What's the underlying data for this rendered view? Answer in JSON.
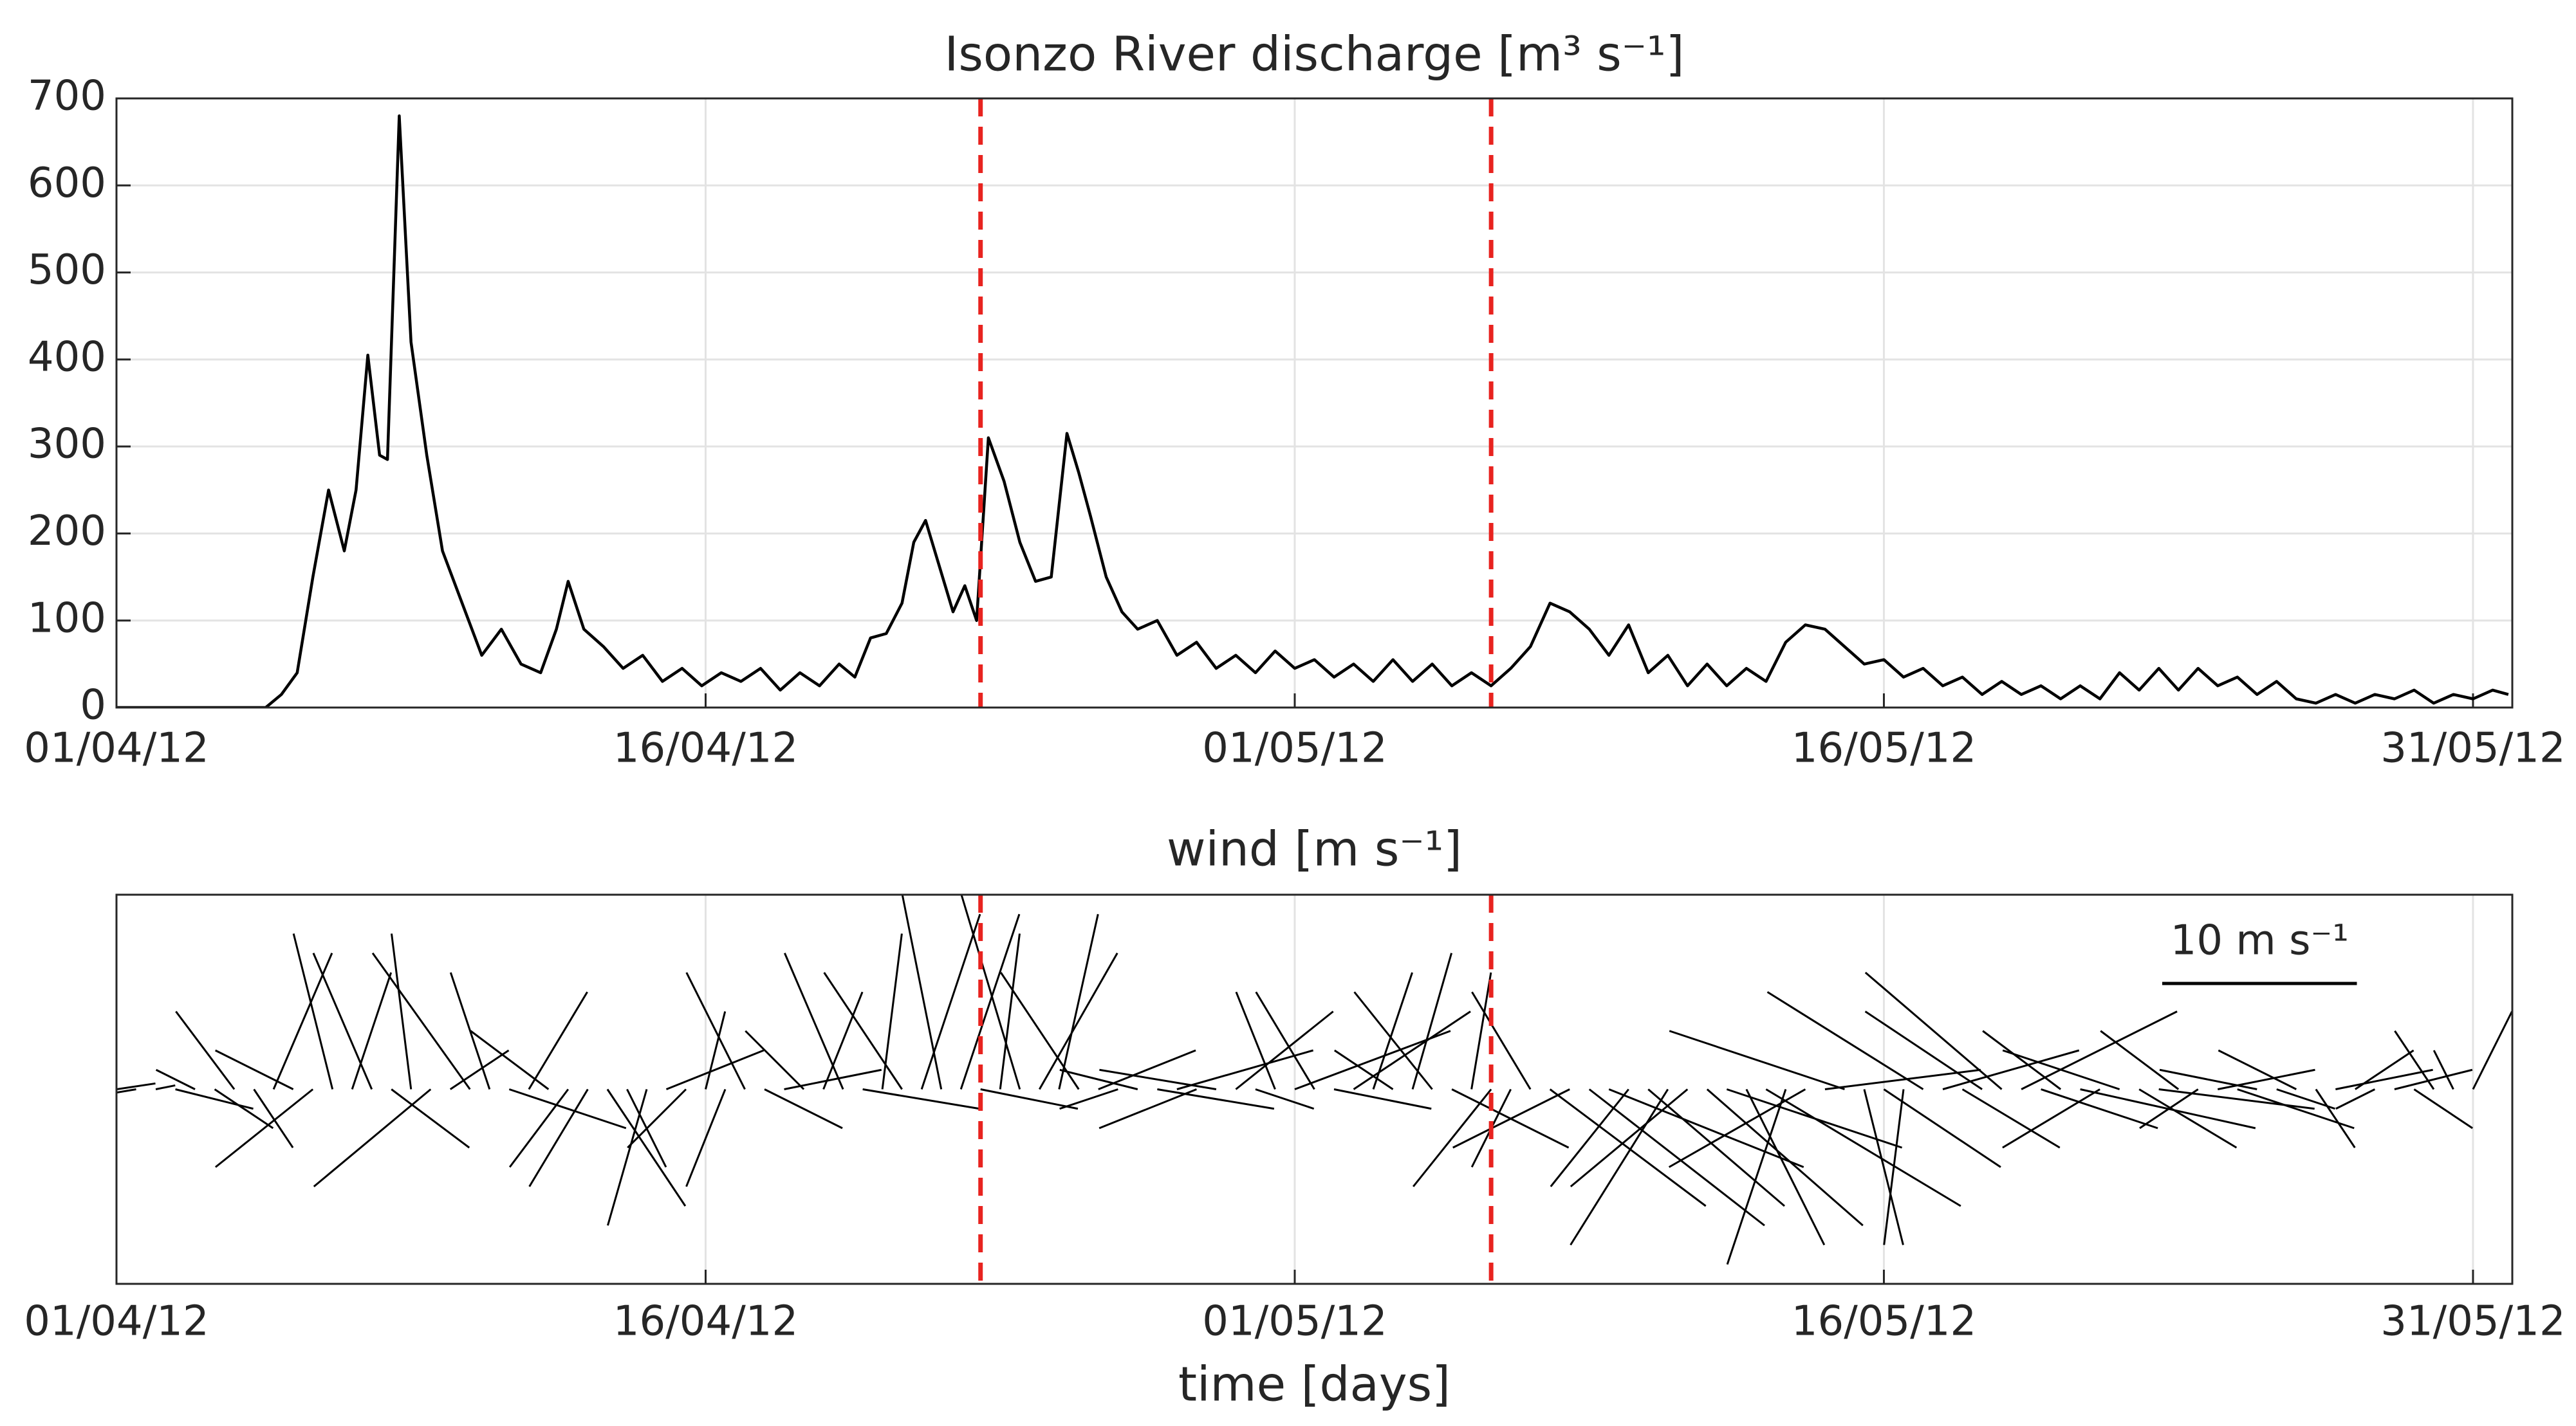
{
  "chart_data": [
    {
      "type": "line",
      "title": "Isonzo River discharge [m³ s⁻¹]",
      "x": [
        0,
        3.8,
        4.2,
        4.6,
        5.0,
        5.4,
        5.8,
        6.1,
        6.4,
        6.7,
        6.9,
        7.2,
        7.5,
        7.9,
        8.3,
        8.8,
        9.3,
        9.8,
        10.3,
        10.8,
        11.2,
        11.5,
        11.9,
        12.4,
        12.9,
        13.4,
        13.9,
        14.4,
        14.9,
        15.4,
        15.9,
        16.4,
        16.9,
        17.4,
        17.9,
        18.4,
        18.8,
        19.2,
        19.6,
        20.0,
        20.3,
        20.6,
        20.9,
        21.3,
        21.6,
        21.9,
        22.2,
        22.6,
        23.0,
        23.4,
        23.8,
        24.2,
        24.5,
        24.8,
        25.2,
        25.6,
        26.0,
        26.5,
        27.0,
        27.5,
        28.0,
        28.5,
        29.0,
        29.5,
        30.0,
        30.5,
        31.0,
        31.5,
        32.0,
        32.5,
        33.0,
        33.5,
        34.0,
        34.5,
        35.0,
        35.5,
        36.0,
        36.5,
        37.0,
        37.5,
        38.0,
        38.5,
        39.0,
        39.5,
        40.0,
        40.5,
        41.0,
        41.5,
        42.0,
        42.5,
        43.0,
        43.5,
        44.0,
        44.5,
        45.0,
        45.5,
        46.0,
        46.5,
        47.0,
        47.5,
        48.0,
        48.5,
        49.0,
        49.5,
        50.0,
        50.5,
        51.0,
        51.5,
        52.0,
        52.5,
        53.0,
        53.5,
        54.0,
        54.5,
        55.0,
        55.5,
        56.0,
        56.5,
        57.0,
        57.5,
        58.0,
        58.5,
        59.0,
        59.5,
        60.0,
        60.5,
        60.9
      ],
      "values": [
        0,
        0,
        15,
        40,
        150,
        250,
        180,
        250,
        405,
        290,
        285,
        680,
        420,
        290,
        180,
        120,
        60,
        90,
        50,
        40,
        90,
        145,
        90,
        70,
        45,
        60,
        30,
        45,
        25,
        40,
        30,
        45,
        20,
        40,
        25,
        50,
        35,
        80,
        85,
        120,
        190,
        215,
        170,
        110,
        140,
        100,
        310,
        260,
        190,
        145,
        150,
        315,
        270,
        220,
        150,
        110,
        90,
        100,
        60,
        75,
        45,
        60,
        40,
        65,
        45,
        55,
        35,
        50,
        30,
        55,
        30,
        50,
        25,
        40,
        25,
        45,
        70,
        120,
        110,
        90,
        60,
        95,
        40,
        60,
        25,
        50,
        25,
        45,
        30,
        75,
        95,
        90,
        70,
        50,
        55,
        35,
        45,
        25,
        35,
        15,
        30,
        15,
        25,
        10,
        25,
        10,
        40,
        20,
        45,
        20,
        45,
        25,
        35,
        15,
        30,
        10,
        5,
        15,
        5,
        15,
        10,
        20,
        5,
        15,
        10,
        20,
        15
      ],
      "color": "#000000",
      "xlim": [
        0,
        61
      ],
      "xticks": [
        {
          "value": 0,
          "label": "01/04/12"
        },
        {
          "value": 15,
          "label": "16/04/12"
        },
        {
          "value": 30,
          "label": "01/05/12"
        },
        {
          "value": 45,
          "label": "16/05/12"
        },
        {
          "value": 60,
          "label": "31/05/12"
        }
      ],
      "ylim": [
        0,
        700
      ],
      "yticks": [
        0,
        100,
        200,
        300,
        400,
        500,
        600,
        700
      ],
      "grid": true,
      "vlines": [
        22,
        35
      ],
      "vline_color": "#e8231f"
    },
    {
      "type": "stick",
      "title": "wind [m s⁻¹]",
      "xlabel": "time [days]",
      "x": [
        0,
        0.5,
        1,
        1.5,
        2,
        2.5,
        3,
        3.5,
        4,
        4.5,
        5,
        5.5,
        6,
        6.5,
        7,
        7.5,
        8,
        8.5,
        9,
        9.5,
        10,
        10.5,
        11,
        11.5,
        12,
        12.5,
        13,
        13.5,
        14,
        14.5,
        15,
        15.5,
        16,
        16.5,
        17,
        17.5,
        18,
        18.5,
        19,
        19.5,
        20,
        20.5,
        21,
        21.5,
        22,
        22.5,
        23,
        23.5,
        24,
        24.5,
        25,
        25.5,
        26,
        26.5,
        27,
        27.5,
        28,
        28.5,
        29,
        29.5,
        30,
        30.5,
        31,
        31.5,
        32,
        32.5,
        33,
        33.5,
        34,
        34.5,
        35,
        35.5,
        36,
        36.5,
        37,
        37.5,
        38,
        38.5,
        39,
        39.5,
        40,
        40.5,
        41,
        41.5,
        42,
        42.5,
        43,
        43.5,
        44,
        44.5,
        45,
        45.5,
        46,
        46.5,
        47,
        47.5,
        48,
        48.5,
        49,
        49.5,
        50,
        50.5,
        51,
        51.5,
        52,
        52.5,
        53,
        53.5,
        54,
        54.5,
        55,
        55.5,
        56,
        56.5,
        57,
        57.5,
        58,
        58.5,
        59,
        59.5,
        60
      ],
      "u": [
        2,
        -3,
        1,
        4,
        -2,
        3,
        -3,
        2,
        3,
        -4,
        -5,
        -2,
        2,
        -3,
        4,
        -1,
        -6,
        3,
        -5,
        -2,
        6,
        3,
        -4,
        -3,
        -3,
        4,
        2,
        -2,
        5,
        -3,
        1,
        -2,
        -3,
        4,
        5,
        -3,
        2,
        -3,
        6,
        1,
        -4,
        3,
        -2,
        3,
        5,
        1,
        -3,
        4,
        2,
        -4,
        5,
        -3,
        -4,
        6,
        7,
        -5,
        -6,
        5,
        3,
        -2,
        8,
        -3,
        5,
        6,
        2,
        -3,
        2,
        -4,
        6,
        1,
        -4,
        -2,
        -3,
        8,
        -6,
        9,
        10,
        -4,
        7,
        -5,
        -6,
        8,
        9,
        4,
        10,
        -3,
        -7,
        8,
        -9,
        2,
        6,
        -1,
        -8,
        7,
        5,
        -6,
        -7,
        8,
        6,
        -4,
        9,
        -5,
        -6,
        5,
        8,
        -4,
        -3,
        5,
        6,
        -5,
        3,
        -4,
        2,
        5,
        3,
        -2,
        4,
        3,
        -2,
        -1,
        2
      ],
      "v": [
        0.3,
        -0.5,
        0.2,
        -1,
        1,
        -2,
        4,
        -3,
        7,
        2,
        -4,
        8,
        6,
        7,
        -3,
        8,
        -5,
        2,
        7,
        6,
        -2,
        5,
        3,
        -4,
        -5,
        -6,
        -4,
        -7,
        2,
        -3,
        4,
        -5,
        6,
        -2,
        1,
        3,
        5,
        7,
        -1,
        8,
        6,
        9,
        10,
        9,
        -1,
        8,
        10,
        7,
        9,
        6,
        2,
        -1,
        1,
        -1,
        2,
        -2,
        1,
        4,
        -1,
        5,
        3,
        5,
        -1,
        4,
        6,
        2,
        7,
        5,
        -3,
        6,
        -5,
        -4,
        5,
        -6,
        -3,
        -7,
        -4,
        -5,
        -6,
        -8,
        -5,
        -7,
        -3,
        -8,
        -6,
        -9,
        -4,
        1,
        3,
        -8,
        -4,
        -8,
        5,
        2,
        -3,
        4,
        6,
        4,
        -2,
        3,
        -2,
        -3,
        2,
        -3,
        -1,
        3,
        -2,
        1,
        -2,
        1,
        -1,
        2,
        -3,
        1,
        2,
        -1,
        1,
        -2,
        3,
        2,
        4
      ],
      "color": "#000000",
      "xlim": [
        0,
        61
      ],
      "xticks": [
        {
          "value": 0,
          "label": "01/04/12"
        },
        {
          "value": 15,
          "label": "16/04/12"
        },
        {
          "value": 30,
          "label": "01/05/12"
        },
        {
          "value": 45,
          "label": "16/05/12"
        },
        {
          "value": 60,
          "label": "31/05/12"
        }
      ],
      "ylim": [
        -10,
        10
      ],
      "grid": true,
      "vlines": [
        22,
        35
      ],
      "vline_color": "#e8231f",
      "scale_bar": {
        "value": 10,
        "label": "10 m s⁻¹"
      }
    }
  ]
}
